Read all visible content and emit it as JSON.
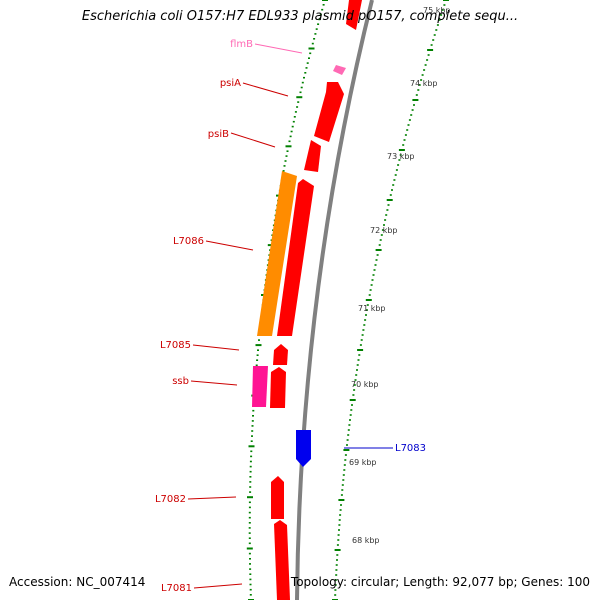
{
  "title": "Escherichia coli O157:H7 EDL933 plasmid pO157, complete sequ...",
  "footer": {
    "accession": "Accession: NC_007414",
    "topology": "Topology: circular; Length: 92,077 bp; Genes: 100"
  },
  "colors": {
    "forward_gene": "#ff0000",
    "reverse_gene": "#0000ee",
    "orange_feature": "#ff8c00",
    "pink_feature": "#ff1493",
    "light_pink_feature": "#ff69b4",
    "backbone": "#808080",
    "tick": "#008000",
    "label_red": "#cc0000",
    "label_blue": "#0000cc",
    "label_pink": "#ff69b4"
  },
  "scale_labels": [
    "75 kbp",
    "74 kbp",
    "73 kbp",
    "72 kbp",
    "71 kbp",
    "70 kbp",
    "69 kbp",
    "68 kbp"
  ],
  "gene_labels": [
    "flmB",
    "psiA",
    "psiB",
    "L7086",
    "L7085",
    "ssb",
    "L7083",
    "L7082",
    "L7081"
  ]
}
